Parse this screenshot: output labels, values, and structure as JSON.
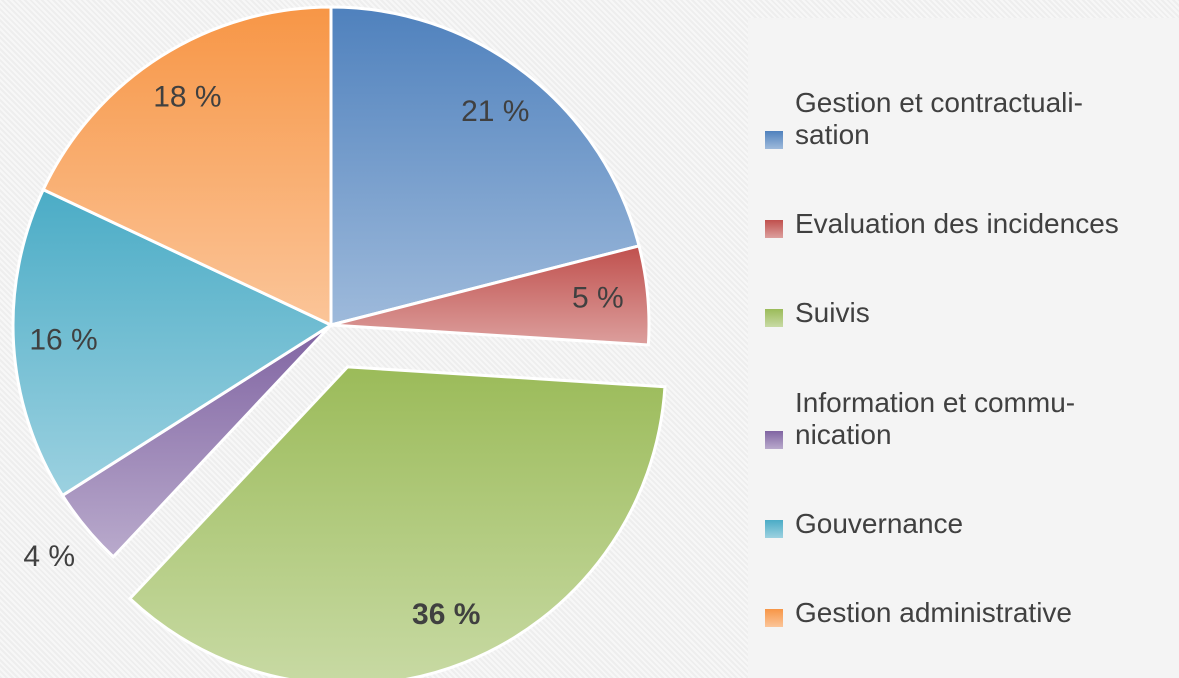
{
  "chart_data": {
    "type": "pie",
    "categories": [
      "Gestion et contractuali-\nsation",
      "Evaluation des incidences",
      "Suivis",
      "Information et commu-\nnication",
      "Gouvernance",
      "Gestion administrative"
    ],
    "values": [
      21,
      5,
      36,
      4,
      16,
      18
    ],
    "value_labels": [
      "21 %",
      "5 %",
      "36 %",
      "4 %",
      "16 %",
      "18 %"
    ],
    "colors": [
      "#4f81bd",
      "#c0504d",
      "#9bbb59",
      "#8064a2",
      "#4bacc6",
      "#f79646"
    ],
    "exploded": "Suivis",
    "legend": "right"
  }
}
